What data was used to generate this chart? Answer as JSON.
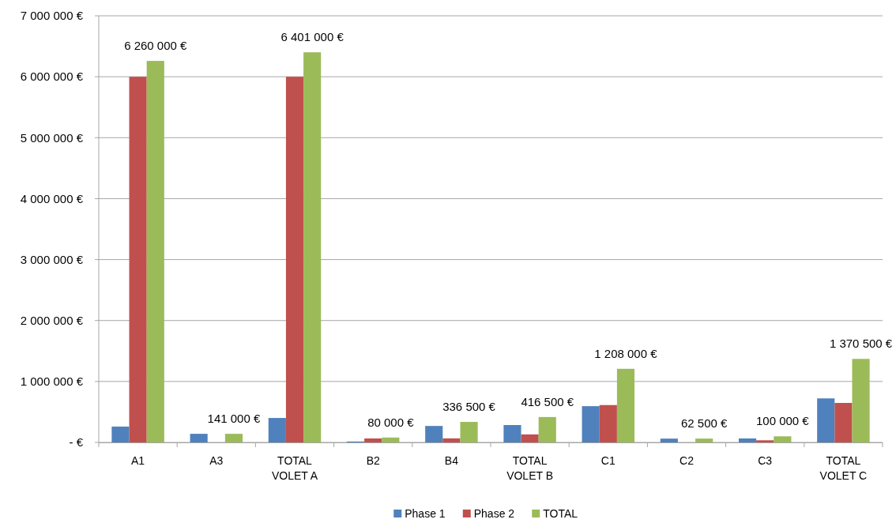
{
  "chart_data": {
    "type": "bar",
    "categories": [
      "A1",
      "A3",
      "TOTAL VOLET A",
      "B2",
      "B4",
      "TOTAL VOLET B",
      "C1",
      "C2",
      "C3",
      "TOTAL VOLET C"
    ],
    "series": [
      {
        "name": "Phase 1",
        "color": "#4f81bd",
        "values": [
          260000,
          141000,
          401000,
          15000,
          270000,
          285000,
          595000,
          62500,
          65000,
          722500
        ]
      },
      {
        "name": "Phase 2",
        "color": "#c0504d",
        "values": [
          6000000,
          0,
          6000000,
          65000,
          66500,
          131500,
          613000,
          0,
          35000,
          648000
        ]
      },
      {
        "name": "TOTAL",
        "color": "#9bbb59",
        "values": [
          6260000,
          141000,
          6401000,
          80000,
          336500,
          416500,
          1208000,
          62500,
          100000,
          1370500
        ],
        "value_labels": [
          "6 260 000 €",
          "141 000 €",
          "6 401 000 €",
          "80 000 €",
          "336 500 €",
          "416 500 €",
          "1 208 000 €",
          "62 500 €",
          "100 000 €",
          "1 370 500 €"
        ]
      }
    ],
    "ylim": [
      0,
      7000000
    ],
    "yticks": [
      {
        "value": 0,
        "label": "- €"
      },
      {
        "value": 1000000,
        "label": "1 000 000 €"
      },
      {
        "value": 2000000,
        "label": "2 000 000 €"
      },
      {
        "value": 3000000,
        "label": "3 000 000 €"
      },
      {
        "value": 4000000,
        "label": "4 000 000 €"
      },
      {
        "value": 5000000,
        "label": "5 000 000 €"
      },
      {
        "value": 6000000,
        "label": "6 000 000 €"
      },
      {
        "value": 7000000,
        "label": "7 000 000 €"
      }
    ],
    "grid": "y",
    "legend": "bottom"
  }
}
